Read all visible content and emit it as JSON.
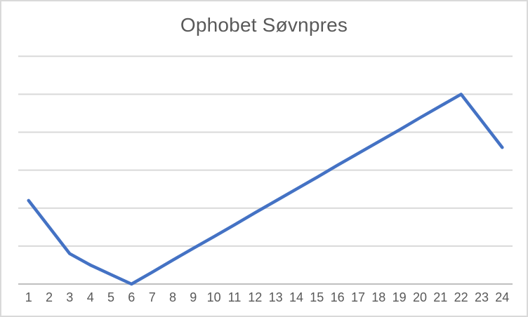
{
  "window": {
    "background_color": "#ffffff",
    "border_color": "#D9D9D9"
  },
  "chart_data": {
    "type": "line",
    "title": "Ophobet Søvnpres",
    "categories": [
      "1",
      "2",
      "3",
      "4",
      "5",
      "6",
      "7",
      "8",
      "9",
      "10",
      "11",
      "12",
      "13",
      "14",
      "15",
      "16",
      "17",
      "18",
      "19",
      "20",
      "21",
      "22",
      "23",
      "24"
    ],
    "values": [
      2.2,
      1.5,
      0.8,
      0.5,
      0.25,
      0,
      0.31,
      0.63,
      0.94,
      1.25,
      1.56,
      1.88,
      2.19,
      2.5,
      2.81,
      3.13,
      3.44,
      3.75,
      4.06,
      4.38,
      4.69,
      5.0,
      4.3,
      3.6
    ],
    "xlabel": "",
    "ylabel": "",
    "ylim": [
      0,
      6
    ],
    "gridline_step": 1,
    "grid": "horizontal",
    "y_tick_labels": "none",
    "legend": "none",
    "markers": "none",
    "line_color": "#4472C4",
    "gridline_color": "#D9D9D9",
    "axis_line_color": "#BFBFBF",
    "text_color": "#595959"
  }
}
